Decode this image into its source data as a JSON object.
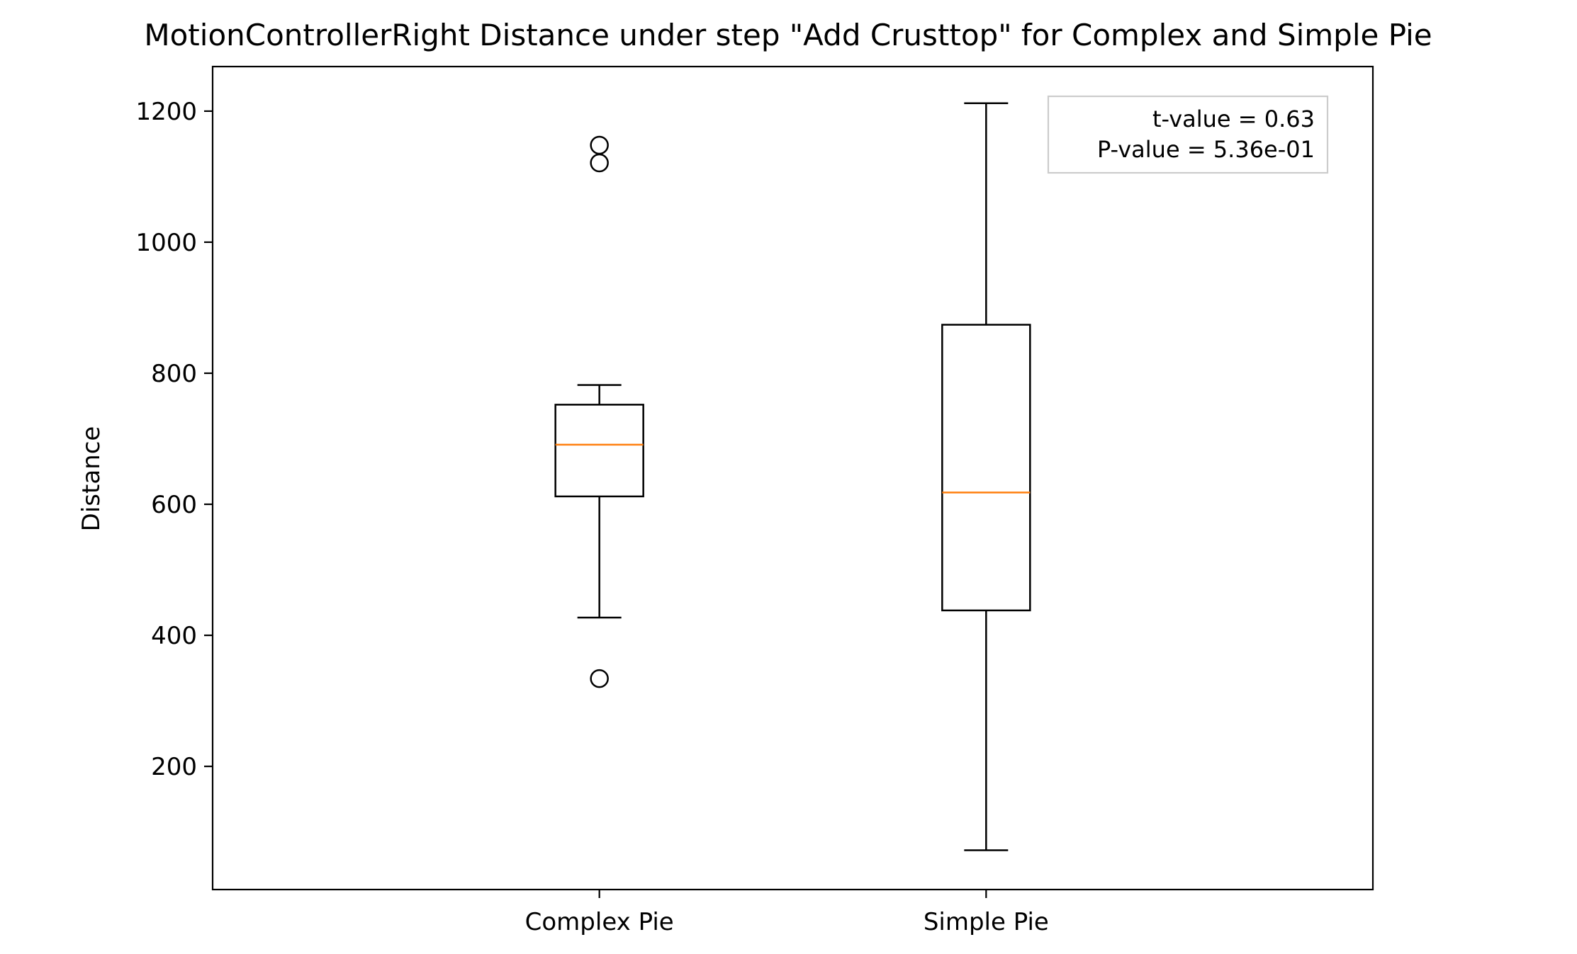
{
  "chart_data": {
    "type": "box",
    "title": "MotionControllerRight Distance under step \"Add Crusttop\" for Complex and Simple Pie",
    "xlabel": "",
    "ylabel": "Distance",
    "ylim": [
      12,
      1268
    ],
    "yticks": [
      200,
      400,
      600,
      800,
      1000,
      1200
    ],
    "grid": false,
    "categories": [
      "Complex Pie",
      "Simple Pie"
    ],
    "boxes": [
      {
        "label": "Complex Pie",
        "whisker_low": 427,
        "q1": 612,
        "median": 691,
        "q3": 752,
        "whisker_high": 782,
        "outliers": [
          1148,
          1121,
          334
        ]
      },
      {
        "label": "Simple Pie",
        "whisker_low": 72,
        "q1": 438,
        "median": 618,
        "q3": 874,
        "whisker_high": 1212,
        "outliers": []
      }
    ],
    "annotation": {
      "lines": [
        "t-value = 0.63",
        "P-value = 5.36e-01"
      ],
      "placement": "top-right"
    },
    "colors": {
      "box": "#000000",
      "median": "#ff7f0e",
      "annotation_border": "#cccccc"
    }
  }
}
